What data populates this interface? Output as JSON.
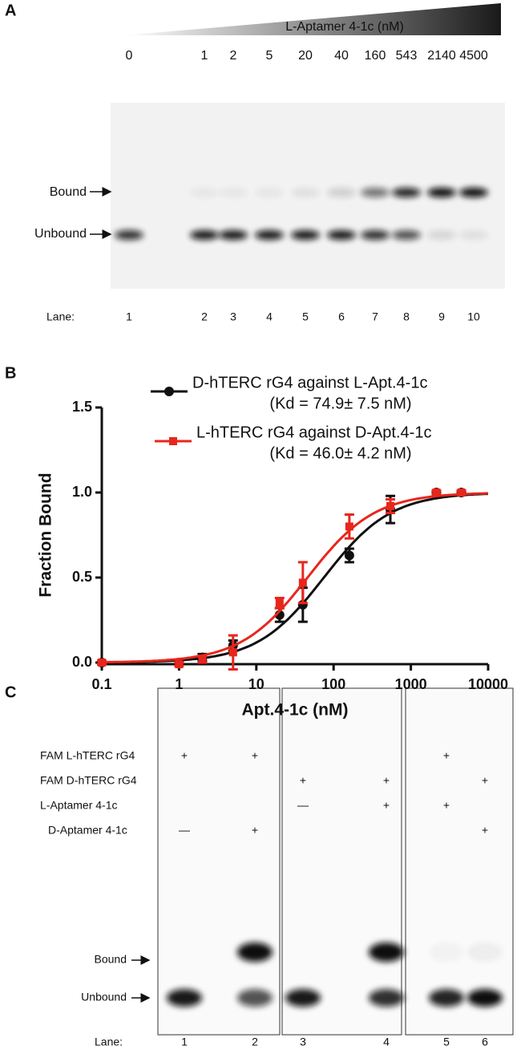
{
  "panel_a": {
    "label": "A",
    "gradient_label": "L-Aptamer 4-1c (nM)",
    "concentrations": [
      "0",
      "1",
      "2",
      "5",
      "20",
      "40",
      "160",
      "543",
      "2140",
      "4500"
    ],
    "bound_label": "Bound",
    "unbound_label": "Unbound",
    "lane_title": "Lane:",
    "lanes": [
      "1",
      "2",
      "3",
      "4",
      "5",
      "6",
      "7",
      "8",
      "9",
      "10"
    ]
  },
  "chart_data": {
    "type": "line",
    "label": "B",
    "x_label": "Apt.4-1c (nM)",
    "y_label": "Fraction Bound",
    "x": [
      0.1,
      1,
      2,
      5,
      20,
      40,
      160,
      543,
      2140,
      4500
    ],
    "xlim": [
      0.1,
      10000
    ],
    "xticks": [
      0.1,
      1,
      10,
      100,
      1000,
      10000
    ],
    "xscale": "log",
    "ylim": [
      0,
      1.5
    ],
    "yticks": [
      {
        "value": 0,
        "label": "0.0"
      },
      {
        "value": 0.5,
        "label": "0.5"
      },
      {
        "value": 1,
        "label": "1.0"
      },
      {
        "value": 1.5,
        "label": "1.5"
      }
    ],
    "series": [
      {
        "name": "D-hTERC rG4 against L-Apt.4-1c",
        "kd_label": "(Kd = 74.9± 7.5 nM)",
        "kd": 74.9,
        "color": "#111111",
        "marker": "circle",
        "values": [
          0,
          0,
          0.03,
          0.1,
          0.28,
          0.34,
          0.63,
          0.9,
          1.0,
          1.0
        ],
        "errors": [
          0.01,
          0.01,
          0.02,
          0.03,
          0.04,
          0.1,
          0.04,
          0.08,
          0.01,
          0.01
        ]
      },
      {
        "name": "L-hTERC rG4 against D-Apt.4-1c",
        "kd_label": "(Kd = 46.0± 4.2 nM)",
        "kd": 46.0,
        "color": "#e8261c",
        "marker": "square",
        "values": [
          0,
          -0.01,
          0.02,
          0.06,
          0.35,
          0.47,
          0.8,
          0.92,
          1.0,
          1.0
        ],
        "errors": [
          0.01,
          0.01,
          0.02,
          0.1,
          0.03,
          0.12,
          0.07,
          0.04,
          0.01,
          0.01
        ]
      }
    ]
  },
  "panel_c": {
    "label": "C",
    "conditions": [
      {
        "name": "FAM L-hTERC rG4",
        "marks": [
          "+",
          "+",
          null,
          null,
          "+",
          null
        ]
      },
      {
        "name": "FAM D-hTERC rG4",
        "marks": [
          null,
          null,
          "+",
          "+",
          null,
          "+"
        ]
      },
      {
        "name": "L-Aptamer 4-1c",
        "marks": [
          null,
          null,
          "—",
          "+",
          "+",
          null
        ]
      },
      {
        "name": "D-Aptamer 4-1c",
        "marks": [
          "—",
          "+",
          null,
          null,
          null,
          "+"
        ]
      }
    ],
    "bound_label": "Bound",
    "unbound_label": "Unbound",
    "lane_title": "Lane:",
    "lanes": [
      "1",
      "2",
      "3",
      "4",
      "5",
      "6"
    ]
  }
}
